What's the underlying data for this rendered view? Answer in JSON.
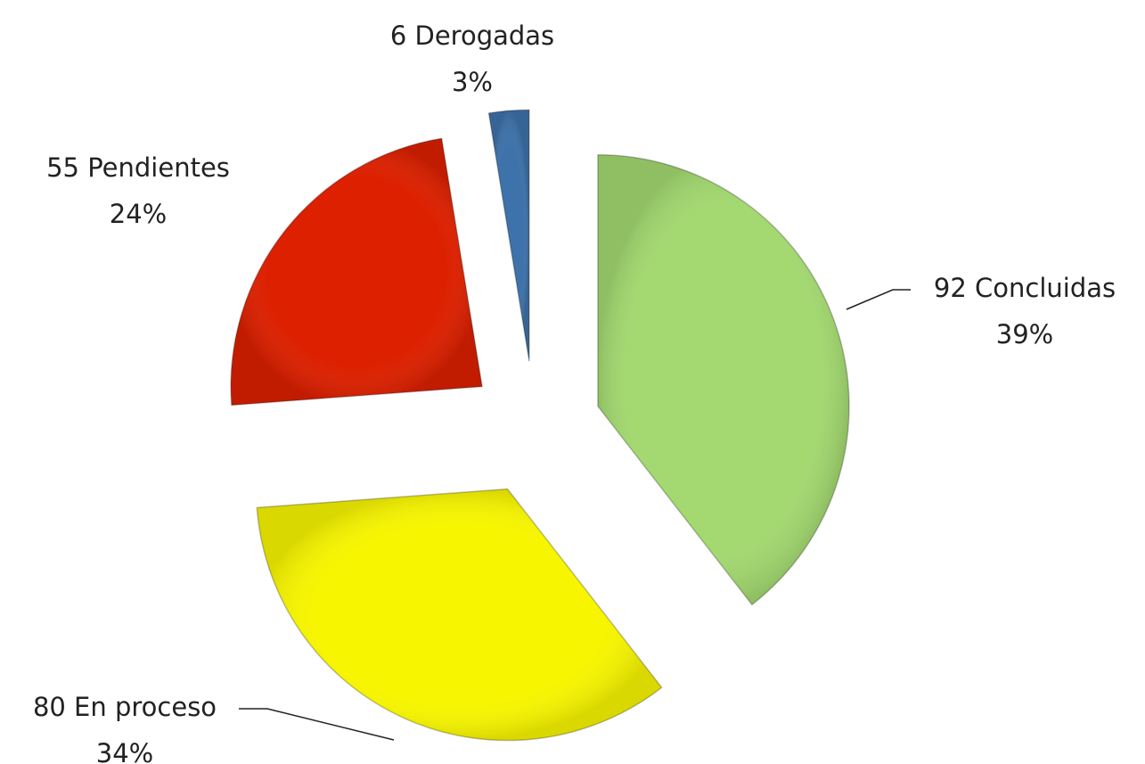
{
  "chart_data": {
    "type": "pie",
    "labels": [
      "92 Concluidas",
      "80 En proceso",
      "55 Pendientes",
      "6 Derogadas"
    ],
    "values": [
      92,
      80,
      55,
      6
    ],
    "percent_labels": [
      "39%",
      "34%",
      "24%",
      "3%"
    ],
    "colors": [
      "#a3d970",
      "#f7f500",
      "#dc2000",
      "#3e72aa"
    ],
    "exploded": true
  }
}
